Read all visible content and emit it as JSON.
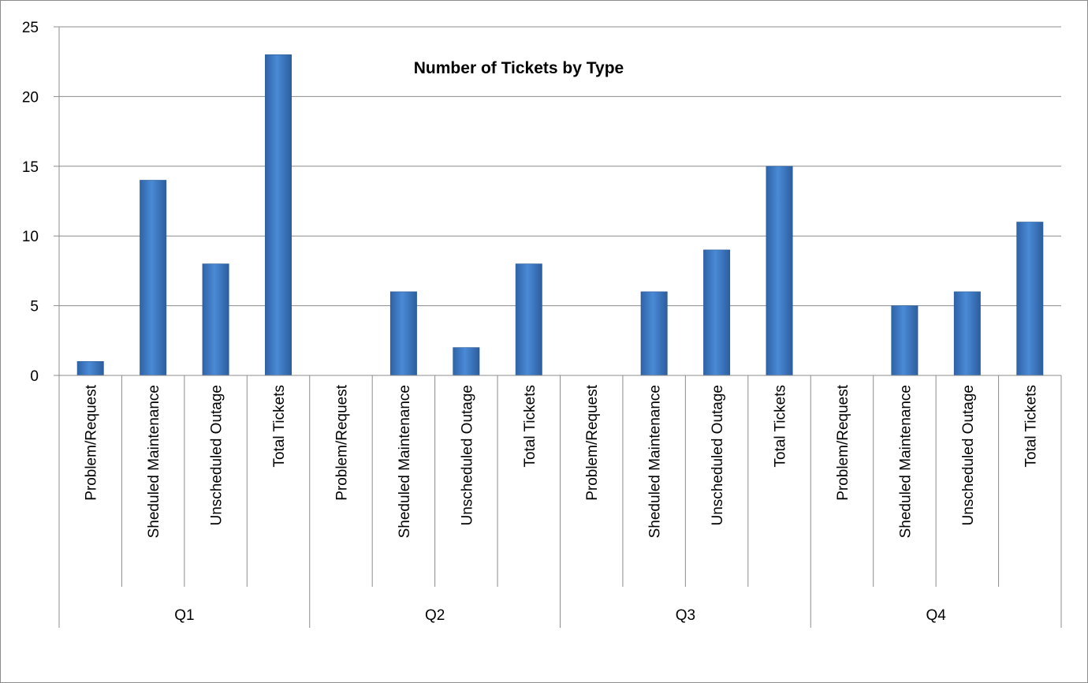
{
  "chart_data": {
    "type": "bar",
    "title": "Number of Tickets by Type",
    "xlabel": "",
    "ylabel": "",
    "ylim": [
      0,
      25
    ],
    "yticks": [
      0,
      5,
      10,
      15,
      20,
      25
    ],
    "grid": true,
    "legend": "none",
    "bar_color": "#3a78c8",
    "groups": [
      "Q1",
      "Q2",
      "Q3",
      "Q4"
    ],
    "categories": [
      "Problem/Request",
      "Sheduled Maintenance",
      "Unscheduled Outage",
      "Total Tickets"
    ],
    "series": [
      {
        "values": [
          [
            1,
            14,
            8,
            23
          ],
          [
            0,
            6,
            2,
            8
          ],
          [
            0,
            6,
            9,
            15
          ],
          [
            0,
            5,
            6,
            11
          ]
        ]
      }
    ]
  }
}
